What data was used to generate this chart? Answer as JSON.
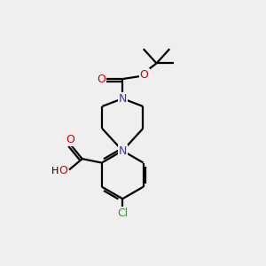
{
  "bg_color": "#efefef",
  "bond_color": "#000000",
  "nitrogen_color": "#3333cc",
  "oxygen_color": "#cc0000",
  "chlorine_color": "#4a8a4a",
  "line_width": 1.6,
  "figsize": [
    3.0,
    3.0
  ],
  "dpi": 100,
  "xlim": [
    0,
    10
  ],
  "ylim": [
    0,
    10
  ]
}
